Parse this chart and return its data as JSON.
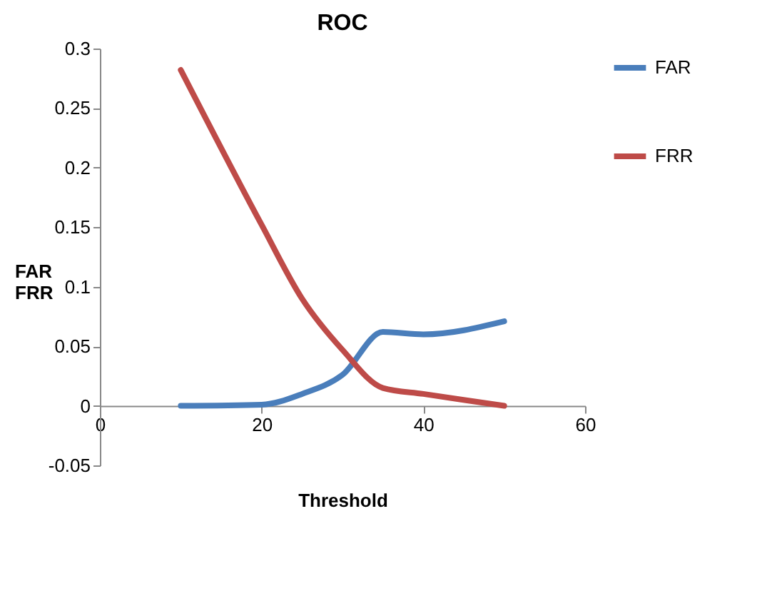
{
  "chart_data": {
    "type": "line",
    "title": "ROC",
    "xlabel": "Threshold",
    "ylabel": "FAR\nFRR",
    "x": [
      10,
      20,
      25,
      30,
      35,
      40,
      50
    ],
    "series": [
      {
        "name": "FAR",
        "color": "#4a7ebb",
        "values": [
          0,
          0.001,
          0.01,
          0.026,
          0.062,
          0.06,
          0.071
        ]
      },
      {
        "name": "FRR",
        "color": "#be4b48",
        "values": [
          0.282,
          0.152,
          0.09,
          0.047,
          0.015,
          0.01,
          0
        ]
      }
    ],
    "xlim": [
      0,
      60
    ],
    "xticks": [
      0,
      20,
      40,
      60
    ],
    "ylim": [
      -0.05,
      0.3
    ],
    "yticks": [
      -0.05,
      0,
      0.05,
      0.1,
      0.15,
      0.2,
      0.25,
      0.3
    ],
    "grid": false,
    "legend": "top right",
    "marker": "none",
    "line_style": "solid"
  }
}
